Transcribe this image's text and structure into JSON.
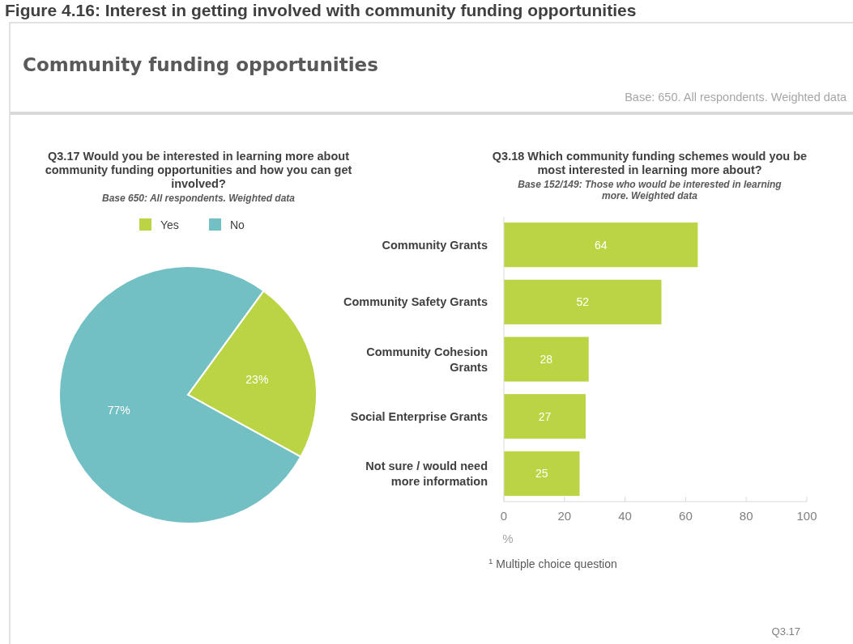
{
  "chart_data": [
    {
      "type": "other",
      "title": "Community funding opportunities",
      "annotations": [
        "Figure 4.16: Interest in getting involved with community funding opportunities",
        "Base: 650. All respondents. Weighted data",
        "Q3.17"
      ]
    },
    {
      "type": "pie",
      "title": "Q3.17 Would you be interested in learning more about community funding opportunities and how you can get involved?",
      "subtitle": "Base 650: All respondents. Weighted data",
      "categories": [
        "Yes",
        "No"
      ],
      "values": [
        23,
        77
      ],
      "colors": [
        "#bad444",
        "#72bfc4"
      ],
      "legend": "top",
      "value_labels": [
        "23%",
        "77%"
      ]
    },
    {
      "type": "bar",
      "orientation": "horizontal",
      "title": "Q3.18 Which community funding schemes would you be most interested in learning more about?",
      "subtitle": "Base 152/149: Those who would be interested in learning more. Weighted data",
      "categories": [
        "Community Grants",
        "Community Safety Grants",
        "Community Cohesion Grants",
        "Social Enterprise Grants",
        "Not sure / would need more information"
      ],
      "values": [
        64,
        52,
        28,
        27,
        25
      ],
      "color": "#bad444",
      "xlim": [
        0,
        100
      ],
      "xticks": [
        0,
        20,
        40,
        60,
        80,
        100
      ],
      "xlabel": "%",
      "data_labels": true,
      "annotations": [
        "$^{1}$ Multiple choice question"
      ]
    }
  ]
}
